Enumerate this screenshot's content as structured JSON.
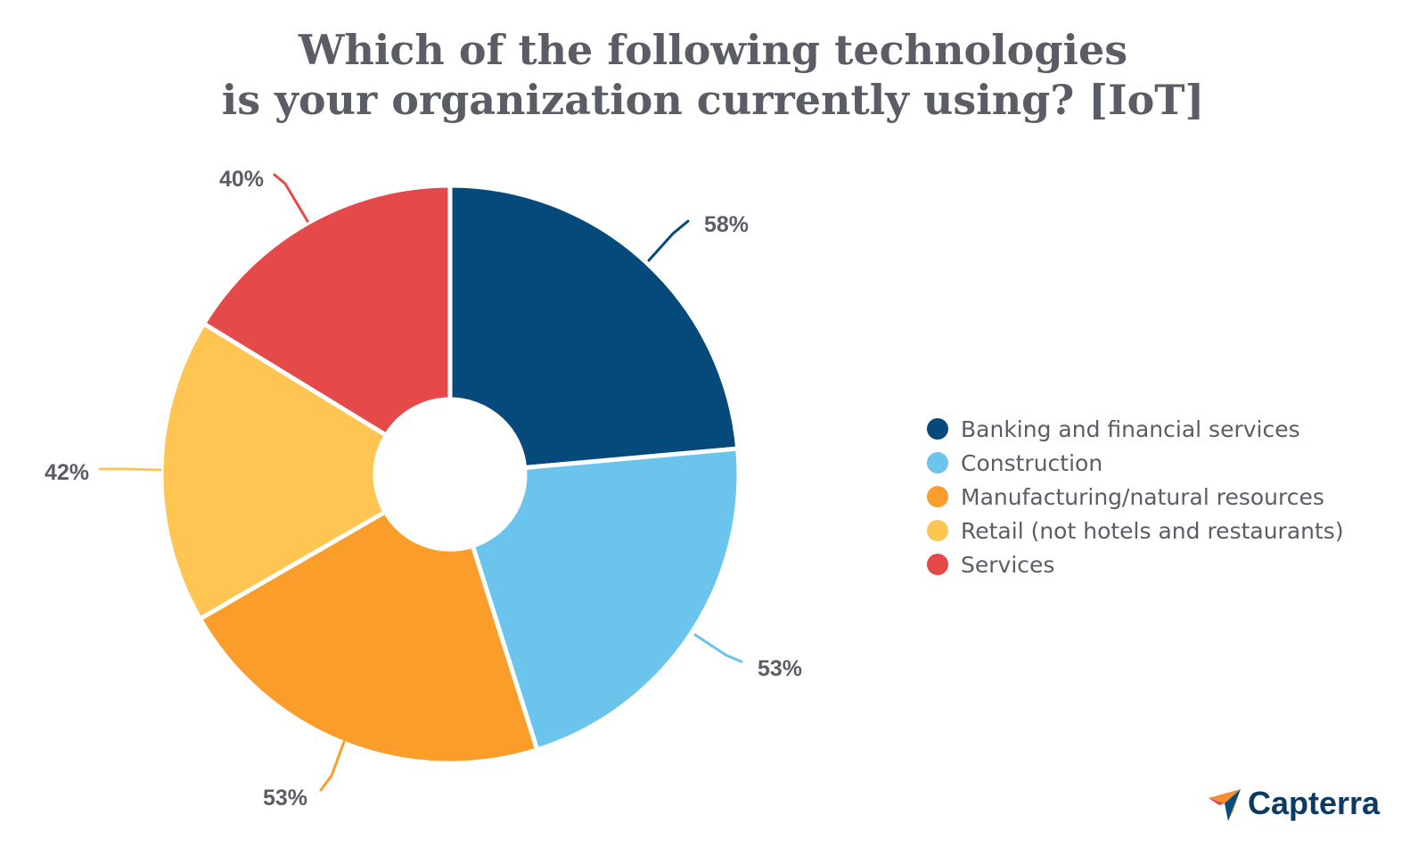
{
  "title": {
    "line1": "Which of the following technologies",
    "line2": "is your organization currently using? [IoT]"
  },
  "chart_data": {
    "type": "pie",
    "donut": true,
    "categories": [
      "Banking and financial services",
      "Construction",
      "Manufacturing/natural resources",
      "Retail (not hotels and restaurants)",
      "Services"
    ],
    "values": [
      58,
      53,
      53,
      42,
      40
    ],
    "labels": [
      "58%",
      "53%",
      "53%",
      "42%",
      "40%"
    ],
    "colors": [
      "#064a7c",
      "#6bc4ec",
      "#fb9d2a",
      "#fec553",
      "#e54949"
    ],
    "legend_position": "right"
  },
  "legend": [
    {
      "label": "Banking and financial services",
      "color": "#064a7c"
    },
    {
      "label": "Construction",
      "color": "#6bc4ec"
    },
    {
      "label": "Manufacturing/natural resources",
      "color": "#fb9d2a"
    },
    {
      "label": "Retail (not hotels and restaurants)",
      "color": "#fec553"
    },
    {
      "label": "Services",
      "color": "#e54949"
    }
  ],
  "logo": {
    "text": "Capterra"
  }
}
